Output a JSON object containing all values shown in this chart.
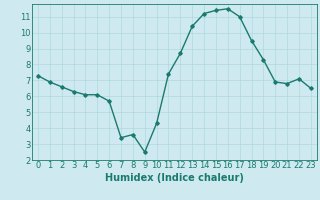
{
  "x": [
    0,
    1,
    2,
    3,
    4,
    5,
    6,
    7,
    8,
    9,
    10,
    11,
    12,
    13,
    14,
    15,
    16,
    17,
    18,
    19,
    20,
    21,
    22,
    23
  ],
  "y": [
    7.3,
    6.9,
    6.6,
    6.3,
    6.1,
    6.1,
    5.7,
    3.4,
    3.6,
    2.5,
    4.3,
    7.4,
    8.7,
    10.4,
    11.2,
    11.4,
    11.5,
    11.0,
    9.5,
    8.3,
    6.9,
    6.8,
    7.1,
    6.5
  ],
  "line_color": "#1a7a6e",
  "bg_color": "#ceeaf0",
  "grid_color": "#b0d8e0",
  "xlabel": "Humidex (Indice chaleur)",
  "ylim": [
    2,
    11.8
  ],
  "xlim": [
    -0.5,
    23.5
  ],
  "yticks": [
    2,
    3,
    4,
    5,
    6,
    7,
    8,
    9,
    10,
    11
  ],
  "xticks": [
    0,
    1,
    2,
    3,
    4,
    5,
    6,
    7,
    8,
    9,
    10,
    11,
    12,
    13,
    14,
    15,
    16,
    17,
    18,
    19,
    20,
    21,
    22,
    23
  ],
  "label_fontsize": 7,
  "tick_fontsize": 6,
  "marker": "D",
  "marker_size": 1.8,
  "line_width": 1.0
}
